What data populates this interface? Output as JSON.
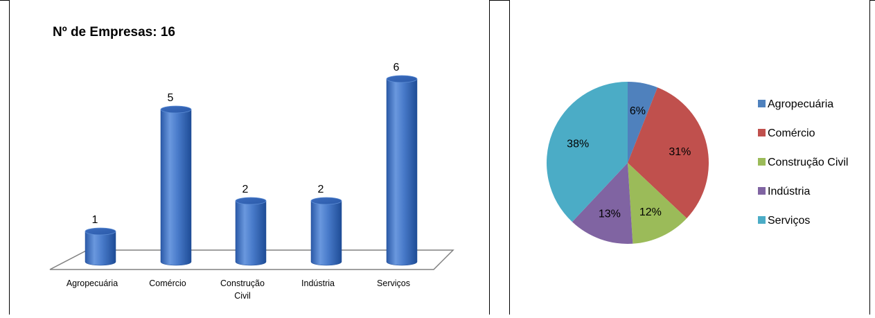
{
  "chart_data": [
    {
      "type": "bar",
      "title": "Nº de Empresas:  16",
      "categories": [
        "Agropecuária",
        "Comércio",
        "Construção\nCivil",
        "Indústria",
        "Serviços"
      ],
      "values": [
        1,
        5,
        2,
        2,
        6
      ],
      "data_labels": [
        "1",
        "5",
        "2",
        "2",
        "6"
      ],
      "xlabel": "",
      "ylabel": "",
      "ylim": [
        0,
        6
      ],
      "style": "3d-cylinder",
      "grid": false,
      "colors": {
        "bar": "#4472C4",
        "bar_light": "#7AA3E0",
        "bar_dark": "#1F4F9E",
        "floor": "#808080"
      }
    },
    {
      "type": "pie",
      "title": "",
      "categories": [
        "Agropecuária",
        "Comércio",
        "Construção Civil",
        "Indústria",
        "Serviços"
      ],
      "values": [
        6,
        31,
        12,
        13,
        38
      ],
      "data_labels": [
        "6%",
        "31%",
        "12%",
        "13%",
        "38%"
      ],
      "colors": [
        "#4F81BD",
        "#C0504D",
        "#9BBB59",
        "#8064A2",
        "#4BACC6"
      ],
      "legend": {
        "position": "right",
        "items": [
          "Agropecuária",
          "Comércio",
          "Construção Civil",
          "Indústria",
          "Serviços"
        ]
      }
    }
  ]
}
